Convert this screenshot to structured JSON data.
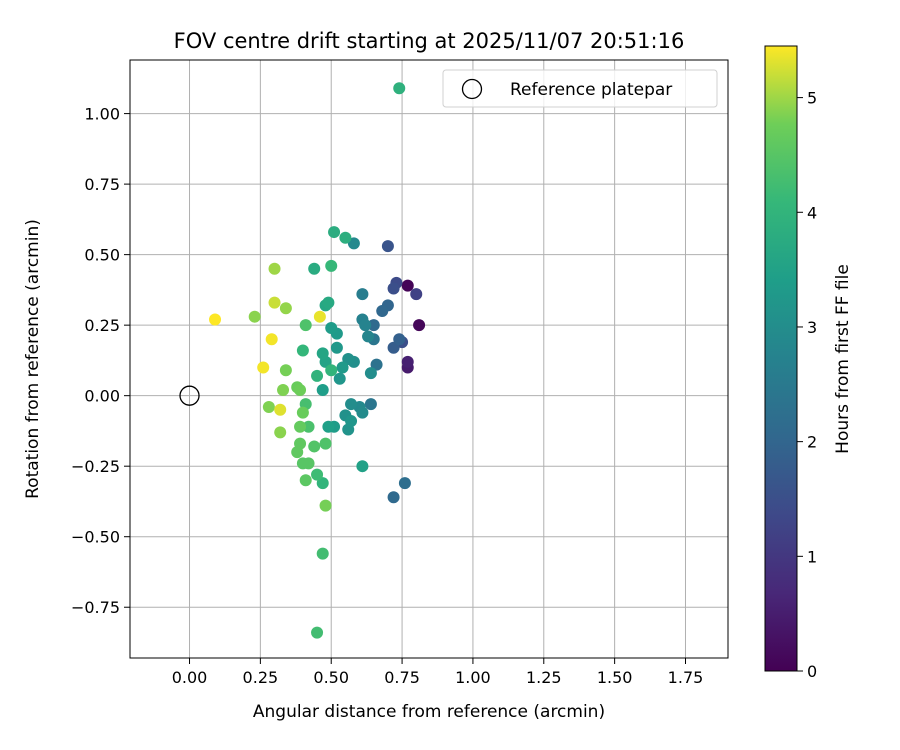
{
  "chart_data": {
    "type": "scatter",
    "title": "FOV centre drift starting at 2025/11/07 20:51:16",
    "xlabel": "Angular distance from reference (arcmin)",
    "ylabel": "Rotation from reference (arcmin)",
    "xlim": [
      -0.21,
      1.9
    ],
    "ylim": [
      -0.93,
      1.19
    ],
    "xticks": [
      0.0,
      0.25,
      0.5,
      0.75,
      1.0,
      1.25,
      1.5,
      1.75
    ],
    "xtick_labels": [
      "0.00",
      "0.25",
      "0.50",
      "0.75",
      "1.00",
      "1.25",
      "1.50",
      "1.75"
    ],
    "yticks": [
      -0.75,
      -0.5,
      -0.25,
      0.0,
      0.25,
      0.5,
      0.75,
      1.0
    ],
    "ytick_labels": [
      "−0.75",
      "−0.50",
      "−0.25",
      "0.00",
      "0.25",
      "0.50",
      "0.75",
      "1.00"
    ],
    "grid": true,
    "legend": {
      "placement": "top-right",
      "entries": [
        "Reference platepar"
      ]
    },
    "reference_point": {
      "name": "Reference platepar",
      "x": 0.0,
      "y": 0.0
    },
    "colorbar": {
      "label": "Hours from first FF file",
      "colormap": "viridis",
      "range": [
        0,
        5.45
      ],
      "ticks": [
        0,
        1,
        2,
        3,
        4,
        5
      ],
      "tick_labels": [
        "0",
        "1",
        "2",
        "3",
        "4",
        "5"
      ]
    },
    "points": [
      {
        "x": 0.77,
        "y": 0.39,
        "h": 0.05
      },
      {
        "x": 0.81,
        "y": 0.25,
        "h": 0.1
      },
      {
        "x": 0.77,
        "y": 0.1,
        "h": 0.45
      },
      {
        "x": 0.77,
        "y": 0.12,
        "h": 0.55
      },
      {
        "x": 0.8,
        "y": 0.36,
        "h": 1.2
      },
      {
        "x": 0.73,
        "y": 0.4,
        "h": 1.4
      },
      {
        "x": 0.72,
        "y": 0.38,
        "h": 1.5
      },
      {
        "x": 0.75,
        "y": 0.19,
        "h": 1.5
      },
      {
        "x": 0.7,
        "y": 0.53,
        "h": 1.6
      },
      {
        "x": 0.72,
        "y": 0.17,
        "h": 1.8
      },
      {
        "x": 0.74,
        "y": 0.2,
        "h": 1.9
      },
      {
        "x": 0.7,
        "y": 0.32,
        "h": 2.0
      },
      {
        "x": 0.68,
        "y": 0.3,
        "h": 2.05
      },
      {
        "x": 0.65,
        "y": 0.25,
        "h": 2.1
      },
      {
        "x": 0.72,
        "y": -0.36,
        "h": 2.1
      },
      {
        "x": 0.76,
        "y": -0.31,
        "h": 2.2
      },
      {
        "x": 0.66,
        "y": 0.11,
        "h": 2.3
      },
      {
        "x": 0.65,
        "y": 0.2,
        "h": 2.4
      },
      {
        "x": 0.64,
        "y": -0.03,
        "h": 2.4
      },
      {
        "x": 0.61,
        "y": 0.36,
        "h": 2.6
      },
      {
        "x": 0.61,
        "y": 0.27,
        "h": 2.7
      },
      {
        "x": 0.62,
        "y": 0.25,
        "h": 2.75
      },
      {
        "x": 0.63,
        "y": 0.21,
        "h": 2.8
      },
      {
        "x": 0.58,
        "y": 0.54,
        "h": 2.9
      },
      {
        "x": 0.6,
        "y": -0.04,
        "h": 2.9
      },
      {
        "x": 0.61,
        "y": -0.06,
        "h": 2.95
      },
      {
        "x": 0.57,
        "y": -0.03,
        "h": 3.0
      },
      {
        "x": 0.64,
        "y": 0.08,
        "h": 3.0
      },
      {
        "x": 0.58,
        "y": 0.12,
        "h": 3.05
      },
      {
        "x": 0.56,
        "y": 0.13,
        "h": 3.1
      },
      {
        "x": 0.55,
        "y": -0.07,
        "h": 3.1
      },
      {
        "x": 0.56,
        "y": -0.12,
        "h": 3.15
      },
      {
        "x": 0.57,
        "y": -0.09,
        "h": 3.2
      },
      {
        "x": 0.53,
        "y": 0.06,
        "h": 3.2
      },
      {
        "x": 0.52,
        "y": 0.17,
        "h": 3.25
      },
      {
        "x": 0.52,
        "y": 0.22,
        "h": 3.3
      },
      {
        "x": 0.54,
        "y": 0.1,
        "h": 3.3
      },
      {
        "x": 0.5,
        "y": 0.24,
        "h": 3.35
      },
      {
        "x": 0.51,
        "y": -0.11,
        "h": 3.35
      },
      {
        "x": 0.47,
        "y": 0.02,
        "h": 3.4
      },
      {
        "x": 0.49,
        "y": -0.11,
        "h": 3.45
      },
      {
        "x": 0.61,
        "y": -0.25,
        "h": 3.5
      },
      {
        "x": 0.48,
        "y": 0.12,
        "h": 3.55
      },
      {
        "x": 0.47,
        "y": 0.15,
        "h": 3.6
      },
      {
        "x": 0.48,
        "y": 0.32,
        "h": 3.65
      },
      {
        "x": 0.49,
        "y": 0.33,
        "h": 3.7
      },
      {
        "x": 0.44,
        "y": 0.45,
        "h": 3.75
      },
      {
        "x": 0.51,
        "y": 0.58,
        "h": 3.8
      },
      {
        "x": 0.55,
        "y": 0.56,
        "h": 3.85
      },
      {
        "x": 0.74,
        "y": 1.09,
        "h": 3.9
      },
      {
        "x": 0.45,
        "y": 0.07,
        "h": 3.95
      },
      {
        "x": 0.5,
        "y": 0.09,
        "h": 4.0
      },
      {
        "x": 0.47,
        "y": -0.31,
        "h": 4.0
      },
      {
        "x": 0.4,
        "y": 0.16,
        "h": 4.05
      },
      {
        "x": 0.5,
        "y": 0.46,
        "h": 4.1
      },
      {
        "x": 0.45,
        "y": -0.28,
        "h": 4.2
      },
      {
        "x": 0.47,
        "y": -0.56,
        "h": 4.25
      },
      {
        "x": 0.45,
        "y": -0.84,
        "h": 4.25
      },
      {
        "x": 0.41,
        "y": -0.03,
        "h": 4.3
      },
      {
        "x": 0.42,
        "y": -0.11,
        "h": 4.35
      },
      {
        "x": 0.48,
        "y": -0.17,
        "h": 4.4
      },
      {
        "x": 0.41,
        "y": 0.25,
        "h": 4.4
      },
      {
        "x": 0.44,
        "y": -0.18,
        "h": 4.45
      },
      {
        "x": 0.42,
        "y": -0.24,
        "h": 4.5
      },
      {
        "x": 0.4,
        "y": -0.24,
        "h": 4.5
      },
      {
        "x": 0.41,
        "y": -0.3,
        "h": 4.55
      },
      {
        "x": 0.39,
        "y": -0.17,
        "h": 4.6
      },
      {
        "x": 0.38,
        "y": -0.2,
        "h": 4.6
      },
      {
        "x": 0.39,
        "y": -0.11,
        "h": 4.65
      },
      {
        "x": 0.4,
        "y": -0.06,
        "h": 4.7
      },
      {
        "x": 0.38,
        "y": 0.03,
        "h": 4.7
      },
      {
        "x": 0.39,
        "y": 0.02,
        "h": 4.75
      },
      {
        "x": 0.48,
        "y": -0.39,
        "h": 4.8
      },
      {
        "x": 0.34,
        "y": 0.09,
        "h": 4.8
      },
      {
        "x": 0.33,
        "y": 0.02,
        "h": 4.85
      },
      {
        "x": 0.28,
        "y": -0.04,
        "h": 4.85
      },
      {
        "x": 0.32,
        "y": -0.13,
        "h": 4.9
      },
      {
        "x": 0.23,
        "y": 0.28,
        "h": 4.9
      },
      {
        "x": 0.34,
        "y": 0.31,
        "h": 4.95
      },
      {
        "x": 0.3,
        "y": 0.45,
        "h": 5.0
      },
      {
        "x": 0.3,
        "y": 0.33,
        "h": 5.2
      },
      {
        "x": 0.32,
        "y": -0.05,
        "h": 5.3
      },
      {
        "x": 0.46,
        "y": 0.28,
        "h": 5.35
      },
      {
        "x": 0.29,
        "y": 0.2,
        "h": 5.4
      },
      {
        "x": 0.26,
        "y": 0.1,
        "h": 5.4
      },
      {
        "x": 0.09,
        "y": 0.27,
        "h": 5.45
      }
    ]
  }
}
